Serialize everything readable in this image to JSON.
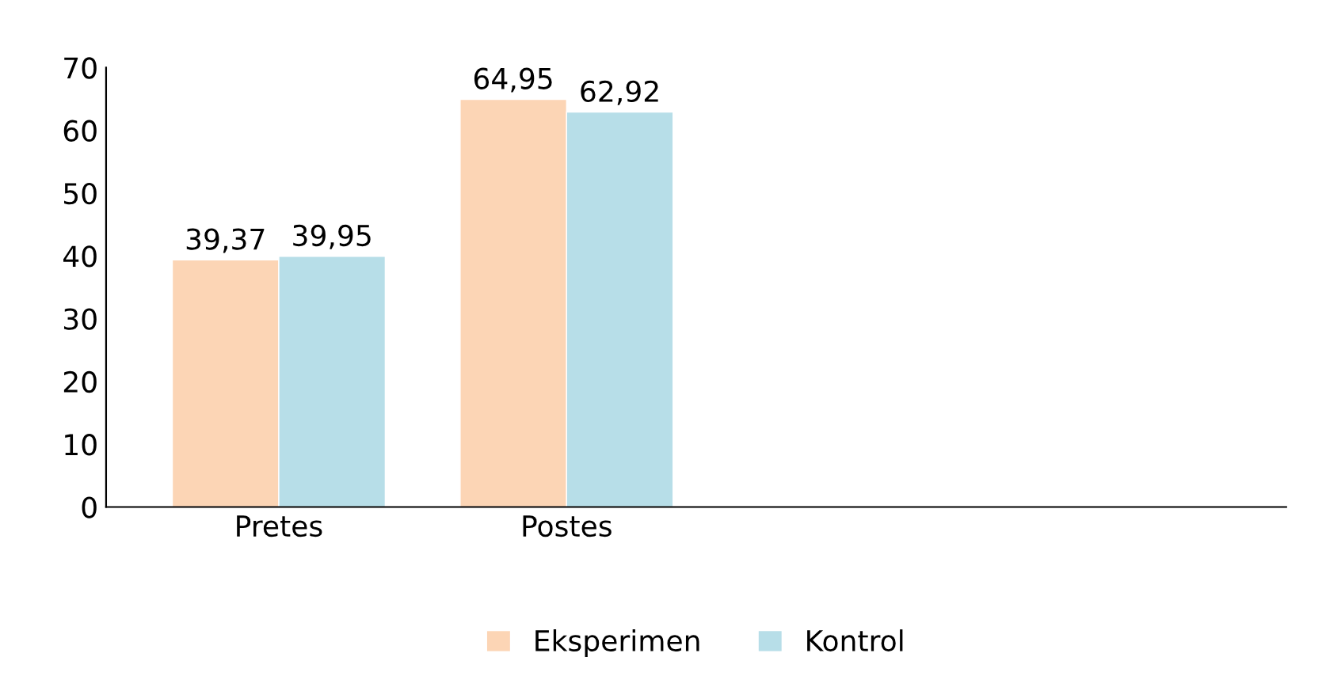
{
  "chart_data": {
    "type": "bar",
    "categories": [
      "Pretes",
      "Postes"
    ],
    "series": [
      {
        "name": "Eksperimen",
        "color": "#fcd5b5",
        "values": [
          39.37,
          64.95
        ],
        "value_labels": [
          "39,37",
          "64,95"
        ]
      },
      {
        "name": "Kontrol",
        "color": "#b7dee8",
        "values": [
          39.95,
          62.92
        ],
        "value_labels": [
          "39,95",
          "62,92"
        ]
      }
    ],
    "ylim": [
      0,
      70
    ],
    "yticks": [
      0,
      10,
      20,
      30,
      40,
      50,
      60,
      70
    ],
    "grid": false,
    "legend": "bottom"
  }
}
